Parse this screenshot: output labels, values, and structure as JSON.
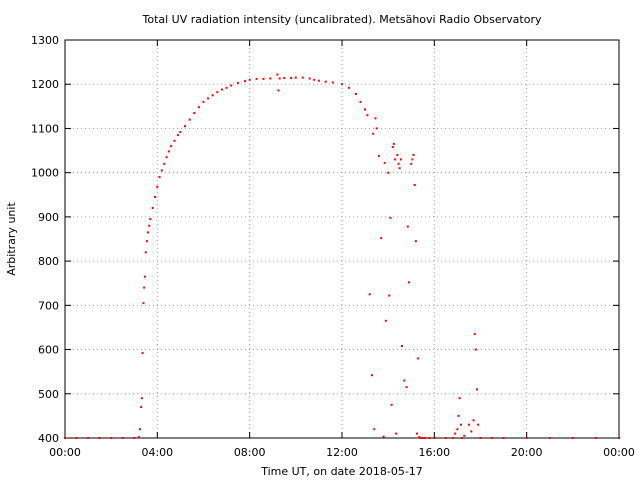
{
  "chart_data": {
    "type": "scatter",
    "title": "Total UV radiation intensity (uncalibrated). Metsähovi Radio Observatory",
    "xlabel": "Time UT, on date 2018-05-17",
    "ylabel": "Arbitrary unit",
    "xlim": [
      0,
      24
    ],
    "ylim": [
      400,
      1300
    ],
    "x_ticks": [
      0,
      4,
      8,
      12,
      16,
      20,
      24
    ],
    "x_tick_labels": [
      "00:00",
      "04:00",
      "08:00",
      "12:00",
      "16:00",
      "20:00",
      "00:00"
    ],
    "y_ticks": [
      400,
      500,
      600,
      700,
      800,
      900,
      1000,
      1100,
      1200,
      1300
    ],
    "y_tick_labels": [
      "400",
      "500",
      "600",
      "700",
      "800",
      "900",
      "1000",
      "1100",
      "1200",
      "1300"
    ],
    "grid": true,
    "marker_color": "#ff0000",
    "series": [
      {
        "x": [
          0.0,
          0.5,
          1.0,
          1.5,
          2.0,
          2.5,
          3.0,
          3.2,
          3.25,
          3.3,
          3.33,
          3.36,
          3.4,
          3.43,
          3.46,
          3.5,
          3.55,
          3.6,
          3.65,
          3.7,
          3.8,
          3.9,
          4.0,
          4.1,
          4.2,
          4.3,
          4.4,
          4.5,
          4.6,
          4.75,
          4.9,
          5.0,
          5.2,
          5.4,
          5.6,
          5.8,
          6.0,
          6.2,
          6.4,
          6.6,
          6.8,
          7.0,
          7.2,
          7.5,
          7.8,
          8.0,
          8.3,
          8.6,
          8.9,
          9.2,
          9.25,
          9.3,
          9.5,
          9.8,
          10.0,
          10.3,
          10.6,
          10.8,
          11.0,
          11.3,
          11.6,
          12.0,
          12.3,
          12.6,
          12.8,
          13.0,
          13.1,
          13.2,
          13.3,
          13.35,
          13.4,
          13.45,
          13.5,
          13.6,
          13.7,
          13.8,
          13.85,
          13.9,
          14.0,
          14.05,
          14.1,
          14.15,
          14.2,
          14.25,
          14.3,
          14.35,
          14.4,
          14.45,
          14.5,
          14.55,
          14.6,
          14.7,
          14.8,
          14.85,
          14.9,
          15.0,
          15.05,
          15.1,
          15.15,
          15.2,
          15.25,
          15.3,
          15.35,
          15.4,
          15.45,
          15.5,
          15.6,
          15.8,
          16.0,
          16.5,
          16.8,
          16.9,
          17.0,
          17.05,
          17.1,
          17.15,
          17.2,
          17.3,
          17.5,
          17.6,
          17.7,
          17.75,
          17.8,
          17.85,
          17.9,
          18.0,
          18.5,
          19.0,
          20.0,
          21.0,
          22.0,
          23.0,
          24.0
        ],
        "y": [
          400,
          400,
          400,
          400,
          400,
          400,
          400,
          402,
          420,
          470,
          490,
          592,
          705,
          740,
          765,
          820,
          845,
          865,
          880,
          895,
          920,
          945,
          968,
          990,
          1005,
          1020,
          1035,
          1048,
          1060,
          1072,
          1085,
          1092,
          1105,
          1120,
          1135,
          1148,
          1160,
          1168,
          1175,
          1182,
          1188,
          1192,
          1197,
          1203,
          1207,
          1210,
          1212,
          1212,
          1213,
          1222,
          1186,
          1213,
          1214,
          1214,
          1215,
          1215,
          1213,
          1210,
          1208,
          1206,
          1204,
          1200,
          1192,
          1178,
          1160,
          1143,
          1130,
          725,
          542,
          1088,
          420,
          1123,
          1100,
          1038,
          852,
          403,
          1022,
          665,
          1000,
          722,
          898,
          475,
          1058,
          1065,
          1030,
          410,
          1040,
          1020,
          1010,
          1030,
          608,
          530,
          515,
          878,
          752,
          1020,
          1030,
          1040,
          972,
          845,
          410,
          580,
          402,
          400,
          400,
          400,
          400,
          400,
          400,
          400,
          400,
          410,
          420,
          450,
          490,
          430,
          400,
          405,
          430,
          415,
          440,
          635,
          600,
          510,
          430,
          400,
          400,
          400,
          400,
          400,
          400,
          400,
          400
        ]
      }
    ]
  }
}
